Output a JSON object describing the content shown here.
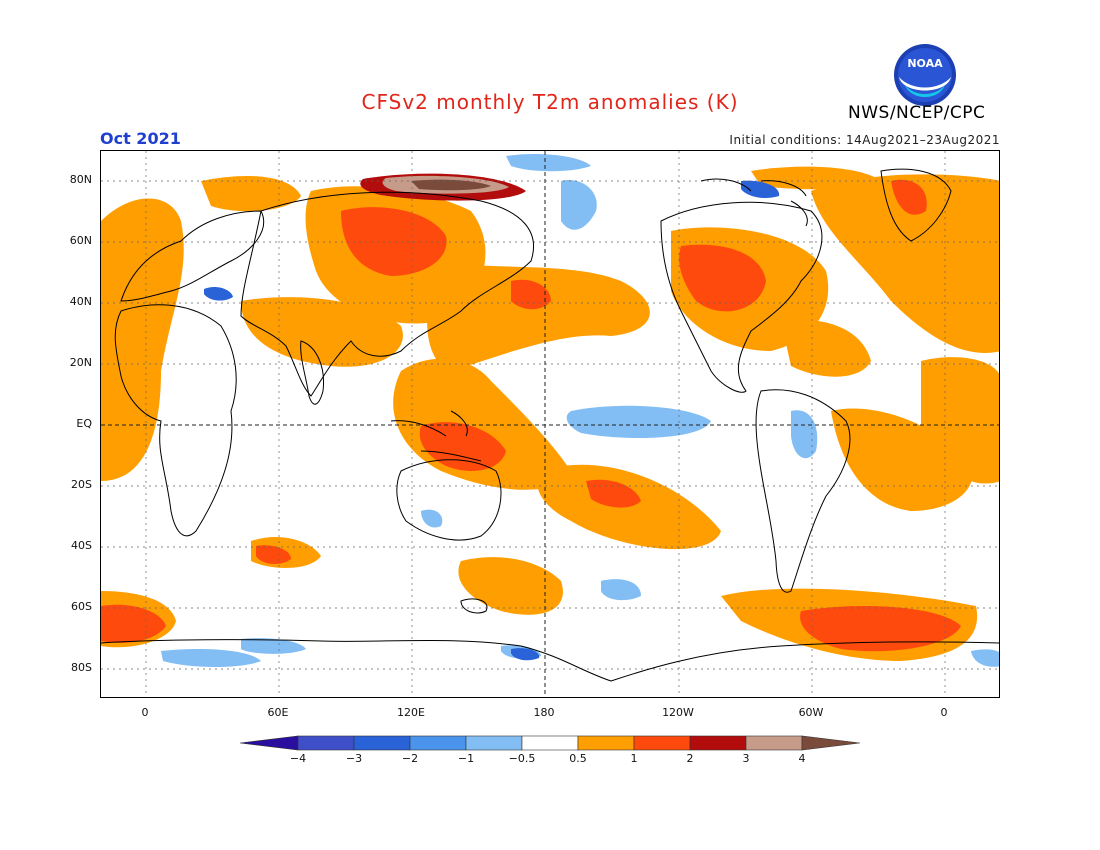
{
  "title": "CFSv2 monthly T2m anomalies (K)",
  "agency": "NWS/NCEP/CPC",
  "logo_text": "NOAA",
  "valid_month": "Oct 2021",
  "initial_conditions": "Initial conditions: 14Aug2021–23Aug2021",
  "map": {
    "lat_labels": [
      "80N",
      "60N",
      "40N",
      "20N",
      "EQ",
      "20S",
      "40S",
      "60S",
      "80S"
    ],
    "lon_labels": [
      "0",
      "60E",
      "120E",
      "180",
      "120W",
      "60W",
      "0"
    ],
    "colors": {
      "ocean_bg": "#ffffff",
      "coast": "#000000",
      "grid": "#555555"
    }
  },
  "legend": {
    "labels": [
      "−4",
      "−3",
      "−2",
      "−1",
      "−0.5",
      "0.5",
      "1",
      "2",
      "3",
      "4"
    ],
    "colors": [
      "#2a0e9e",
      "#3f4ec9",
      "#2a63d8",
      "#4a94ec",
      "#82bdf3",
      "#ffffff",
      "#ff9e00",
      "#ff4a0e",
      "#b30c0c",
      "#c79b8a",
      "#7a4a3a"
    ]
  }
}
